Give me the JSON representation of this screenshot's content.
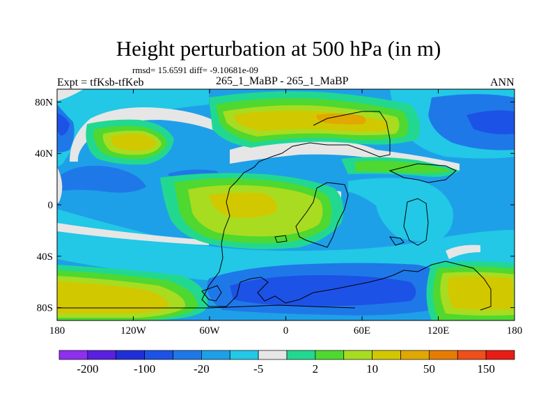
{
  "title": "Height perturbation at 500 hPa (in m)",
  "stats": "rmsd= 15.6591 diff= -9.10681e-09",
  "left_label": "Expt = tfKsb-tfKeb",
  "center_label": "265_1_MaBP - 265_1_MaBP",
  "right_label": "ANN",
  "axes": {
    "x_ticks": [
      "180",
      "120W",
      "60W",
      "0",
      "60E",
      "120E",
      "180"
    ],
    "y_ticks": [
      "80N",
      "40N",
      "0",
      "40S",
      "80S"
    ]
  },
  "colorbar": {
    "colors": [
      "#8f2ff0",
      "#5a1fe0",
      "#1f2fd8",
      "#1d52e6",
      "#1f78e8",
      "#1ea0e8",
      "#22c8e6",
      "#e6e6e6",
      "#22d890",
      "#4fd830",
      "#a8dc20",
      "#d2c800",
      "#e0a800",
      "#e67d00",
      "#ef4f1a",
      "#e81c14"
    ],
    "labels": [
      "-200",
      "-100",
      "-20",
      "-5",
      "2",
      "10",
      "50",
      "150"
    ]
  },
  "palette": {
    "background": "#1ea0e8",
    "light_blue": "#22c8e6",
    "mid_blue": "#1f78e8",
    "deep_blue": "#1d52e6",
    "white": "#e6e6e6",
    "teal": "#22d890",
    "green": "#4fd830",
    "yellow_green": "#a8dc20",
    "yellow": "#d2c800",
    "orange": "#e0a800"
  }
}
